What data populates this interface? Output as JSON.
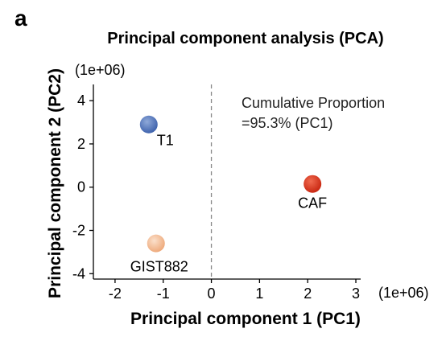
{
  "panel_label": "a",
  "chart_data": {
    "type": "scatter",
    "title": "Principal component analysis (PCA)",
    "xlabel": "Principal component 1 (PC1)",
    "ylabel": "Principal component 2 (PC2)",
    "x_scale_label": "(1e+06)",
    "y_scale_label": "(1e+06)",
    "xlim": [
      -2.45,
      3.1
    ],
    "ylim": [
      -4.25,
      4.75
    ],
    "xticks": [
      -2,
      -1,
      0,
      1,
      2,
      3
    ],
    "yticks": [
      -4,
      -2,
      0,
      2,
      4
    ],
    "reference_line_x": 0,
    "annotation_lines": [
      "Cumulative Proportion",
      "=95.3% (PC1)"
    ],
    "points": [
      {
        "name": "T1",
        "x": -1.3,
        "y": 2.9,
        "color": "#4a6fb5"
      },
      {
        "name": "CAF",
        "x": 2.1,
        "y": 0.15,
        "color": "#d9341f"
      },
      {
        "name": "GIST882",
        "x": -1.15,
        "y": -2.6,
        "color": "#f2b98f"
      }
    ]
  }
}
